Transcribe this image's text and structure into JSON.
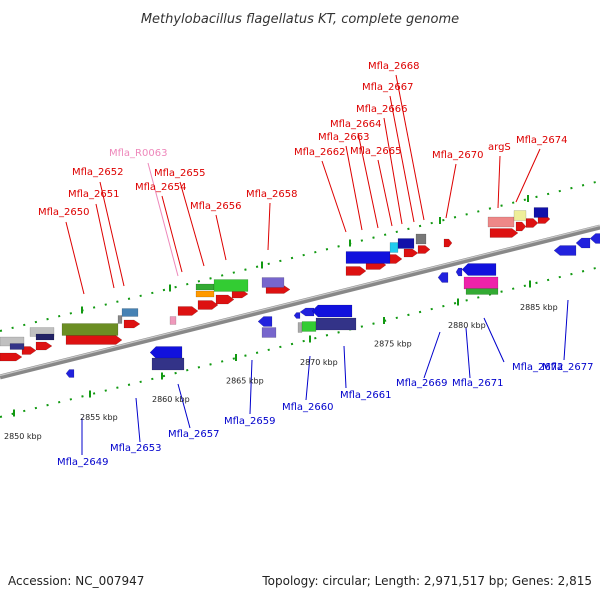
{
  "title": "Methylobacillus flagellatus KT, complete genome",
  "footer": {
    "accession": "Accession: NC_007947",
    "summary": "Topology: circular; Length: 2,971,517 bp; Genes: 2,815"
  },
  "colors": {
    "forward_label": "#dd0000",
    "reverse_label": "#0000cc",
    "rna_label": "#ee88bb",
    "backbone": "#888888",
    "tick": "#119911"
  },
  "scale_ticks": [
    "2850 kbp",
    "2855 kbp",
    "2860 kbp",
    "2865 kbp",
    "2870 kbp",
    "2875 kbp",
    "2880 kbp",
    "2885 kbp"
  ],
  "forward_genes": [
    "Mfla_2650",
    "Mfla_2651",
    "Mfla_2652",
    "Mfla_R0063",
    "Mfla_2654",
    "Mfla_2655",
    "Mfla_2656",
    "Mfla_2658",
    "Mfla_2662",
    "Mfla_2663",
    "Mfla_2664",
    "Mfla_2665",
    "Mfla_2666",
    "Mfla_2667",
    "Mfla_2668",
    "Mfla_2670",
    "argS",
    "Mfla_2674"
  ],
  "reverse_genes": [
    "Mfla_2649",
    "Mfla_2653",
    "Mfla_2657",
    "Mfla_2659",
    "Mfla_2660",
    "Mfla_2661",
    "Mfla_2669",
    "Mfla_2671",
    "Mfla_2672",
    "Mfla_2677"
  ]
}
